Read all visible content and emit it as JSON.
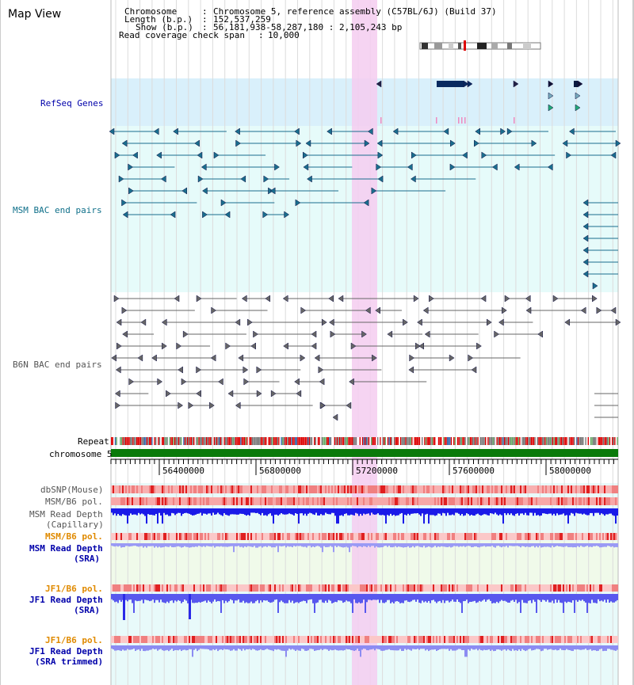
{
  "window": {
    "title": "Map View"
  },
  "info": {
    "chromosome_label": "Chromosome",
    "chromosome_value": "Chromosome 5, reference assembly (C57BL/6J) (Build 37)",
    "length_label": "Length (b.p.)",
    "length_value": "152,537,259",
    "show_label": "Show (b.p.)",
    "show_value": "56,181,938-58,287,180 : 2,105,243 bp",
    "coverage_label": "Read coverage check span",
    "coverage_value": "10,000"
  },
  "tracks": {
    "refseq": "RefSeq Genes",
    "msm_bac": "MSM BAC end pairs",
    "b6n_bac": "B6N BAC end pairs",
    "repeat": "Repeat",
    "chromosome": "chromosome 5",
    "dbsnp": "dbSNP(Mouse)",
    "msm_b6_pol": "MSM/B6 pol.",
    "msm_depth_cap_1": "MSM Read Depth",
    "msm_depth_cap_2": "(Capillary)",
    "msm_b6_pol_2": "MSM/B6 pol.",
    "msm_depth_sra_1": "MSM Read Depth",
    "msm_depth_sra_2": "(SRA)",
    "jf1_b6_pol": "JF1/B6 pol.",
    "jf1_depth_1": "JF1 Read Depth",
    "jf1_depth_2": "(SRA)",
    "jf1_b6_pol_2": "JF1/B6 pol.",
    "jf1_depth_trim_1": "JF1 Read Depth",
    "jf1_depth_trim_2": "(SRA trimmed)"
  },
  "ruler": {
    "ticks": [
      "56400000",
      "56800000",
      "57200000",
      "57600000",
      "58000000"
    ]
  },
  "colors": {
    "refseq_bg": "#d9f0fb",
    "msm_bg": "#e6fbfa",
    "b6n_bg": "#ffffff",
    "highlight": "#f5cdf0",
    "msm_color": "#1a6e8e",
    "b6n_color": "#666666",
    "chrom_bar": "#0a7a0a",
    "depth_blue": "#3a3af0",
    "depth_light": "#8d8df5",
    "pol_red": "#f06060",
    "label_blue": "#0000aa",
    "label_teal": "#10708a",
    "label_orange": "#e08a00"
  }
}
